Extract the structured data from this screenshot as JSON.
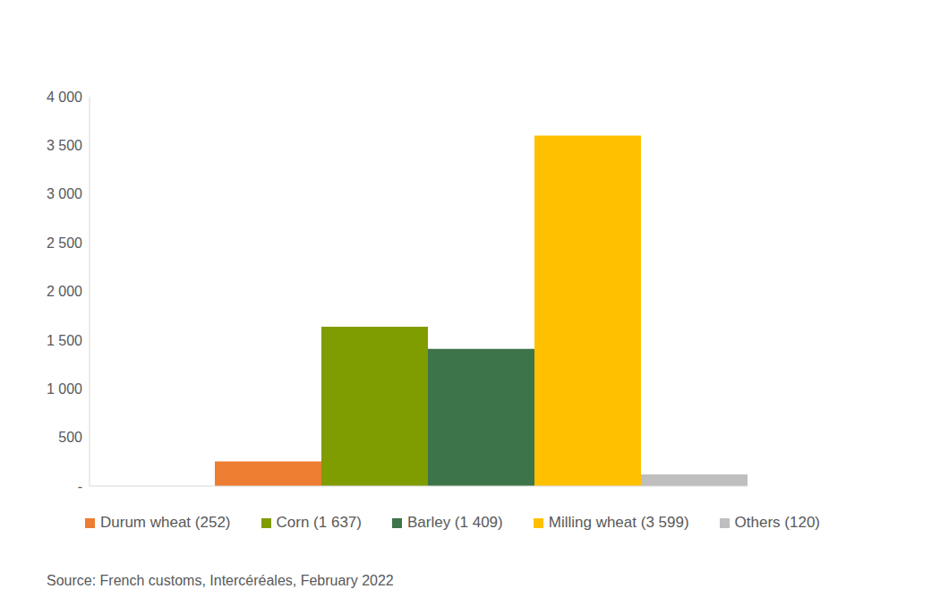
{
  "chart_data": {
    "type": "bar",
    "categories": [
      "Durum wheat (252)",
      "Corn (1 637)",
      "Barley (1 409)",
      "Milling wheat (3 599)",
      "Others (120)"
    ],
    "values": [
      252,
      1637,
      1409,
      3599,
      120
    ],
    "colors": [
      "#ed7d31",
      "#7f9c00",
      "#3e7449",
      "#ffc000",
      "#bfbfbf"
    ],
    "ylim": [
      0,
      4000
    ],
    "yticks": [
      {
        "value": 0,
        "label": "-"
      },
      500,
      {
        "value": 1000,
        "label": "1 000"
      },
      {
        "value": 1500,
        "label": "1 500"
      },
      {
        "value": 2000,
        "label": "2 000"
      },
      {
        "value": 2500,
        "label": "2 500"
      },
      {
        "value": 3000,
        "label": "3 000"
      },
      {
        "value": 3500,
        "label": "3 500"
      },
      {
        "value": 4000,
        "label": "4 000"
      }
    ],
    "legend": "bottom",
    "tick_labels": "y",
    "grid": false,
    "source": "Source: French customs, Intercéréales, February 2022"
  }
}
